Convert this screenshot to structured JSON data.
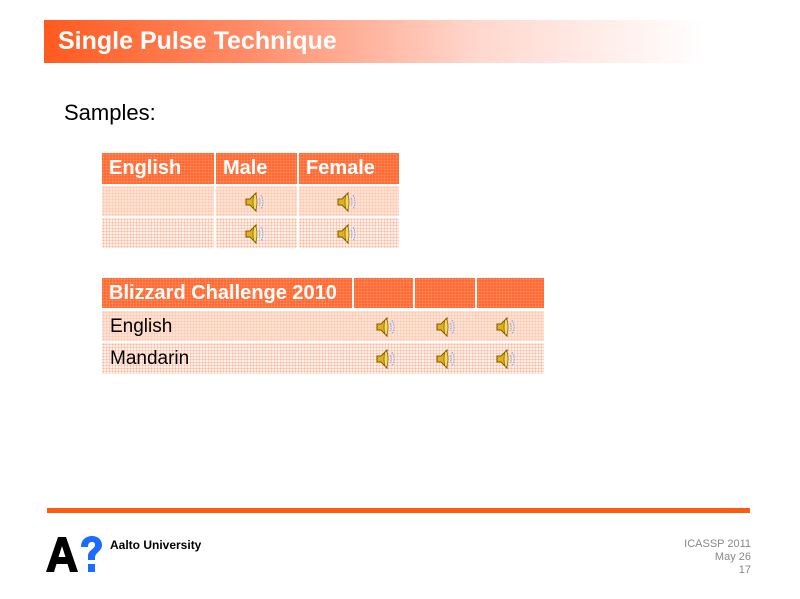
{
  "title": "Single Pulse Technique",
  "subtitle": "Samples:",
  "table1": {
    "headers": [
      "English",
      "Male",
      "Female"
    ],
    "rows": [
      [
        "",
        true,
        true
      ],
      [
        "",
        true,
        true
      ]
    ]
  },
  "table2": {
    "headers": [
      "Blizzard Challenge 2010",
      "",
      "",
      ""
    ],
    "rows": [
      {
        "label": "English"
      },
      {
        "label": "Mandarin"
      }
    ]
  },
  "footer": {
    "university": "Aalto University",
    "logo_text": "A?",
    "conference": "ICASSP 2011",
    "date": "May 26",
    "page": "17"
  },
  "colors": {
    "accent": "#ff5a10",
    "header": "#ff6a33",
    "logo_blue": "#1a6cff"
  },
  "icons": {
    "audio": "speaker-icon"
  }
}
